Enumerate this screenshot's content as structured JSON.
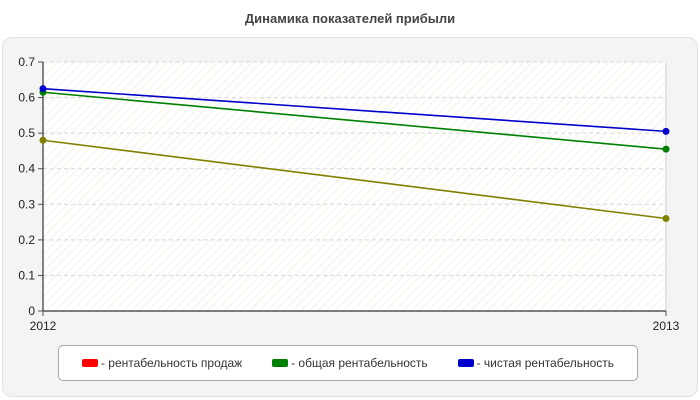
{
  "chart_data": {
    "type": "line",
    "title": "Динамика показателей прибыли",
    "xlabel": "",
    "ylabel": "",
    "categories": [
      "2012",
      "2013"
    ],
    "ylim": [
      0,
      0.7
    ],
    "yticks": [
      "0",
      "0.1",
      "0.2",
      "0.3",
      "0.4",
      "0.5",
      "0.6",
      "0.7"
    ],
    "grid": true,
    "legend_position": "bottom",
    "series": [
      {
        "name": "рентабельность продаж",
        "legend_label": "- рентабельность продаж",
        "values": [
          0.48,
          0.26
        ],
        "line_color": "#808000",
        "swatch_color": "#ff0000"
      },
      {
        "name": "общая рентабельность",
        "legend_label": "- общая рентабельность",
        "values": [
          0.615,
          0.455
        ],
        "line_color": "#008000",
        "swatch_color": "#008000"
      },
      {
        "name": "чистая рентабельность",
        "legend_label": "- чистая рентабельность",
        "values": [
          0.625,
          0.505
        ],
        "line_color": "#0000cc",
        "swatch_color": "#0000cc"
      }
    ]
  }
}
